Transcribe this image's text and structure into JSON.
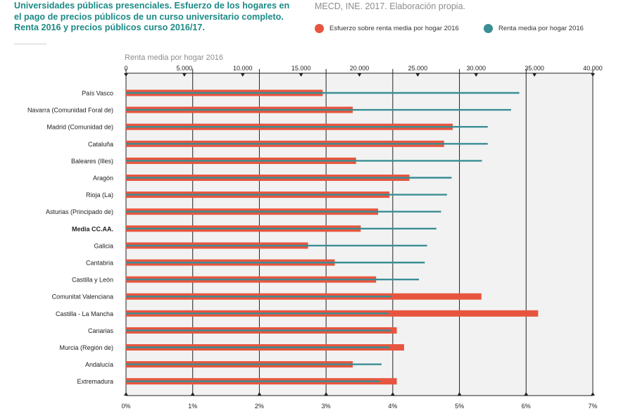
{
  "header": {
    "title": "Universidades públicas presenciales. Esfuerzo de los hogares en el pago de precios públicos de un curso universitario completo. Renta 2016 y precios públicos curso 2016/17.",
    "source": "MECD, INE. 2017. Elaboración propia."
  },
  "legend": {
    "effort_label": "Esfuerzo sobre renta media por hogar 2016",
    "income_label": "Renta media por hogar 2016"
  },
  "colors": {
    "effort": "#e8553e",
    "income": "#3a8e94",
    "plot_bg": "#f2f2f2"
  },
  "chart_data": {
    "type": "bar",
    "title": "Universidades públicas presenciales. Esfuerzo de los hogares en el pago de precios públicos de un curso universitario completo. Renta 2016 y precios públicos curso 2016/17.",
    "top_axis_label": "Renta media por hogar 2016",
    "top_axis": {
      "min": 0,
      "max": 40000,
      "ticks": [
        0,
        5000,
        10000,
        15000,
        20000,
        25000,
        30000,
        35000,
        40000
      ],
      "tick_labels": [
        "0",
        "5.000",
        "10.000",
        "15.000",
        "20.000",
        "25.000",
        "30.000",
        "35.000",
        "40.000"
      ]
    },
    "bottom_axis": {
      "min": 0,
      "max": 7,
      "ticks": [
        0,
        1,
        2,
        3,
        4,
        5,
        6,
        7
      ],
      "tick_labels": [
        "0%",
        "1%",
        "2%",
        "3%",
        "4%",
        "5%",
        "6%",
        "7%"
      ]
    },
    "grid": true,
    "legend_position": "top-right",
    "categories": [
      "País Vasco",
      "Navarra (Comunidad Foral de)",
      "Madrid (Comunidad de)",
      "Cataluña",
      "Baleares (Illes)",
      "Aragón",
      "Rioja (La)",
      "Asturias (Principado de)",
      "Media CC.AA.",
      "Galicia",
      "Cantabria",
      "Castilla y León",
      "Comunitat Valenciana",
      "Castilla - La Mancha",
      "Canarias",
      "Murcia (Región de)",
      "Andalucía",
      "Extremadura"
    ],
    "highlight_category": "Media CC.AA.",
    "series": [
      {
        "name": "Esfuerzo sobre renta media por hogar 2016",
        "unit": "%",
        "values": [
          2.95,
          3.4,
          4.9,
          4.77,
          3.45,
          4.25,
          3.95,
          3.78,
          3.52,
          2.73,
          3.13,
          3.75,
          5.33,
          6.18,
          4.06,
          4.17,
          3.4,
          4.06
        ]
      },
      {
        "name": "Renta media por hogar 2016",
        "unit": "€",
        "values": [
          33700,
          33000,
          31000,
          31000,
          30500,
          27900,
          27500,
          27000,
          26600,
          25800,
          25600,
          25100,
          22800,
          22500,
          22700,
          22600,
          21900,
          21800
        ]
      }
    ]
  }
}
